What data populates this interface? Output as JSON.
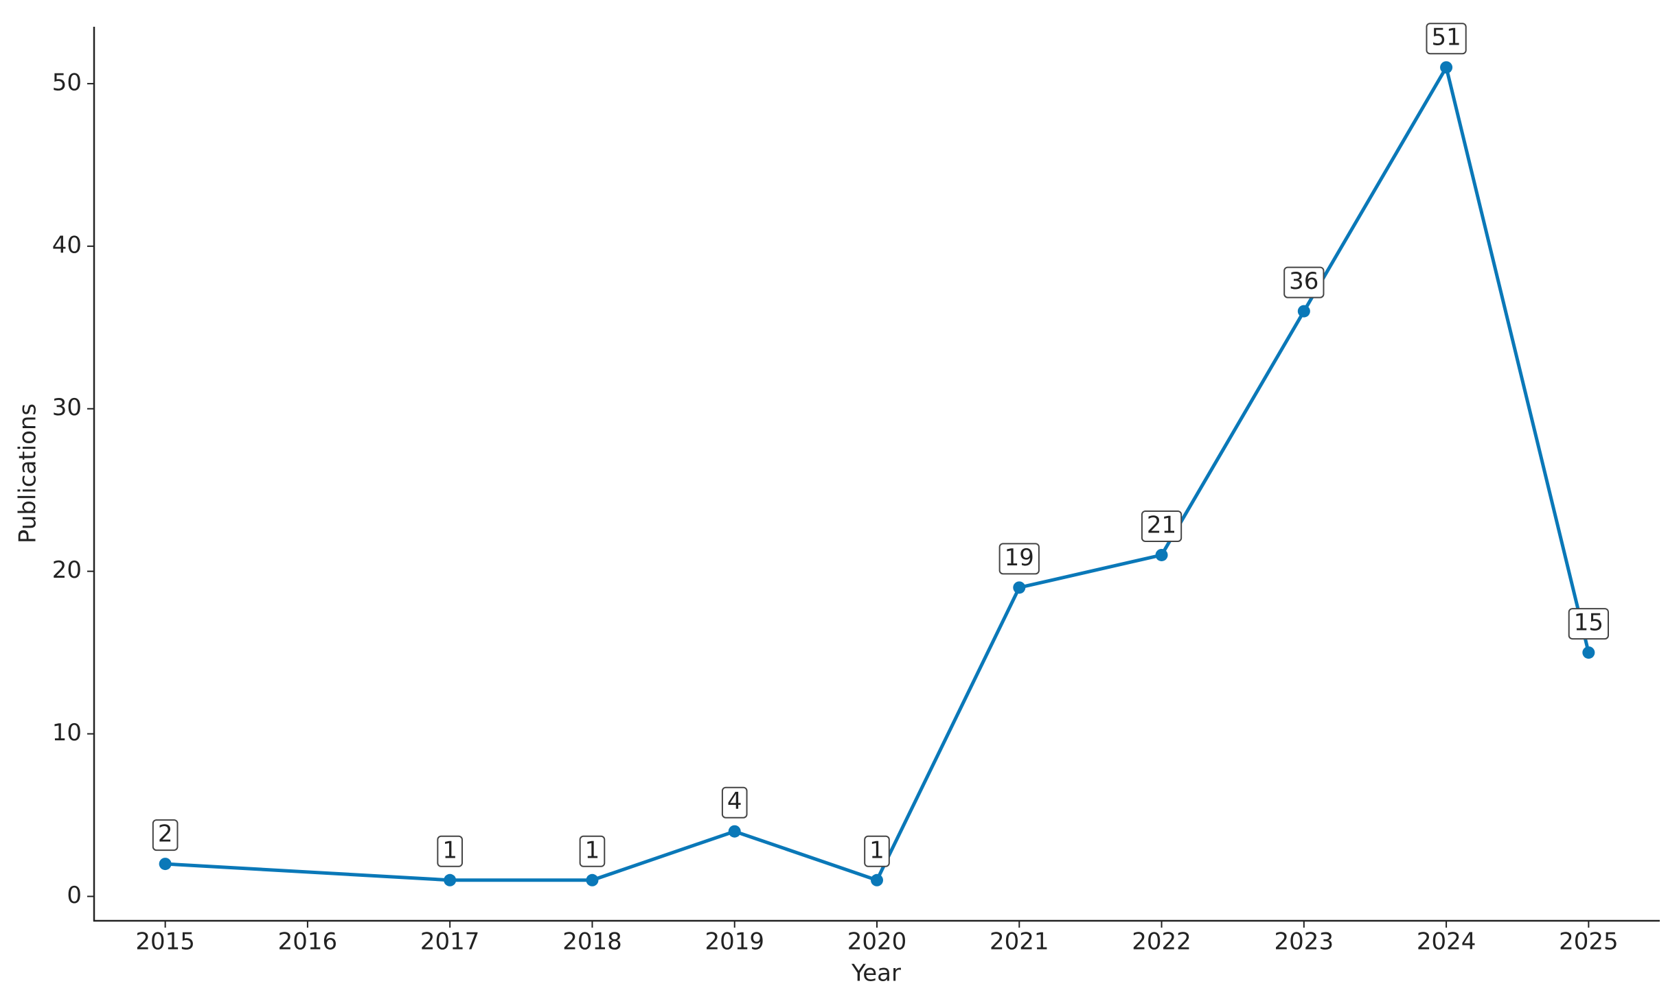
{
  "chart_data": {
    "type": "line",
    "x_label": "Year",
    "y_label": "Publications",
    "x": [
      2015,
      2017,
      2018,
      2019,
      2020,
      2021,
      2022,
      2023,
      2024,
      2025
    ],
    "series": [
      {
        "color": "#0a78b8",
        "values": [
          2,
          1,
          1,
          4,
          1,
          19,
          21,
          36,
          51,
          15
        ]
      }
    ],
    "xlim": [
      2014.5,
      2025.5
    ],
    "xticks": [
      2015,
      2016,
      2017,
      2018,
      2019,
      2020,
      2021,
      2022,
      2023,
      2024,
      2025
    ],
    "ylim": [
      -1.5,
      53.5
    ],
    "yticks": [
      0,
      10,
      20,
      30,
      40,
      50
    ],
    "grid": false,
    "data_labels": true
  }
}
